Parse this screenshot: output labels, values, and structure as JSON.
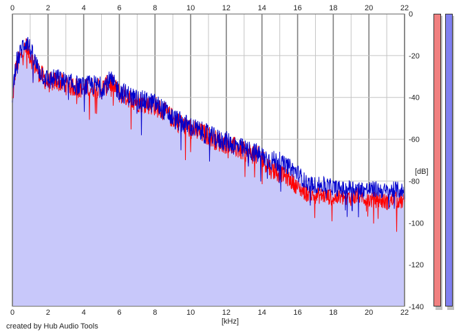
{
  "chart_data": {
    "type": "line",
    "title": "",
    "xlabel": "[kHz]",
    "ylabel": "[dB]",
    "xlim": [
      0,
      22
    ],
    "ylim": [
      -140,
      0
    ],
    "x_ticks": [
      0,
      2,
      4,
      6,
      8,
      10,
      12,
      14,
      16,
      18,
      20,
      22
    ],
    "y_ticks": [
      0,
      -20,
      -40,
      -60,
      -80,
      -100,
      -120,
      -140
    ],
    "grid": true,
    "colors": {
      "fill": "#c8c8fa",
      "red_series": "#ff0000",
      "blue_series": "#0000cc",
      "grid_minor": "#c4c4c4",
      "grid_major": "#7f7f7f",
      "meter_red": "#f08080",
      "meter_blue": "#8080f0"
    },
    "series": [
      {
        "color": "#ff0000",
        "x": [
          0,
          0.2,
          0.4,
          0.6,
          0.8,
          1.0,
          1.2,
          1.5,
          2,
          2.5,
          3,
          3.5,
          4,
          4.5,
          5,
          5.5,
          6,
          6.5,
          7,
          7.5,
          8,
          8.5,
          9,
          9.5,
          10,
          10.5,
          11,
          11.5,
          12,
          12.5,
          13,
          13.5,
          14,
          14.5,
          15,
          15.5,
          16,
          16.5,
          17,
          17.5,
          18,
          18.5,
          19,
          19.5,
          20,
          20.5,
          21,
          21.5,
          22
        ],
        "values": [
          -42,
          -25,
          -22,
          -18,
          -16,
          -20,
          -24,
          -28,
          -33,
          -32,
          -34,
          -35,
          -36,
          -35,
          -36,
          -33,
          -38,
          -40,
          -42,
          -43,
          -44,
          -47,
          -50,
          -53,
          -55,
          -57,
          -58,
          -61,
          -62,
          -64,
          -66,
          -67,
          -69,
          -74,
          -76,
          -79,
          -83,
          -86,
          -87,
          -87,
          -88,
          -88,
          -88,
          -87,
          -89,
          -89,
          -90,
          -89,
          -90
        ]
      },
      {
        "color": "#0000cc",
        "x": [
          0,
          0.2,
          0.4,
          0.6,
          0.8,
          1.0,
          1.2,
          1.5,
          2,
          2.5,
          3,
          3.5,
          4,
          4.5,
          5,
          5.5,
          6,
          6.5,
          7,
          7.5,
          8,
          8.5,
          9,
          9.5,
          10,
          10.5,
          11,
          11.5,
          12,
          12.5,
          13,
          13.5,
          14,
          14.5,
          15,
          15.5,
          16,
          16.5,
          17,
          17.5,
          18,
          18.5,
          19,
          19.5,
          20,
          20.5,
          21,
          21.5,
          22
        ],
        "values": [
          -40,
          -23,
          -20,
          -15,
          -13,
          -17,
          -22,
          -27,
          -32,
          -31,
          -33,
          -34,
          -35,
          -34,
          -35,
          -32,
          -37,
          -39,
          -41,
          -42,
          -43,
          -46,
          -50,
          -52,
          -54,
          -56,
          -58,
          -60,
          -61,
          -63,
          -65,
          -66,
          -68,
          -70,
          -71,
          -73,
          -76,
          -81,
          -82,
          -82,
          -83,
          -84,
          -83,
          -84,
          -84,
          -84,
          -85,
          -84,
          -85
        ]
      }
    ]
  },
  "legend_meters": [
    {
      "color": "#f08080",
      "level": 0
    },
    {
      "color": "#8080f0",
      "level": 0
    }
  ],
  "credit": "created by Hub Audio Tools"
}
